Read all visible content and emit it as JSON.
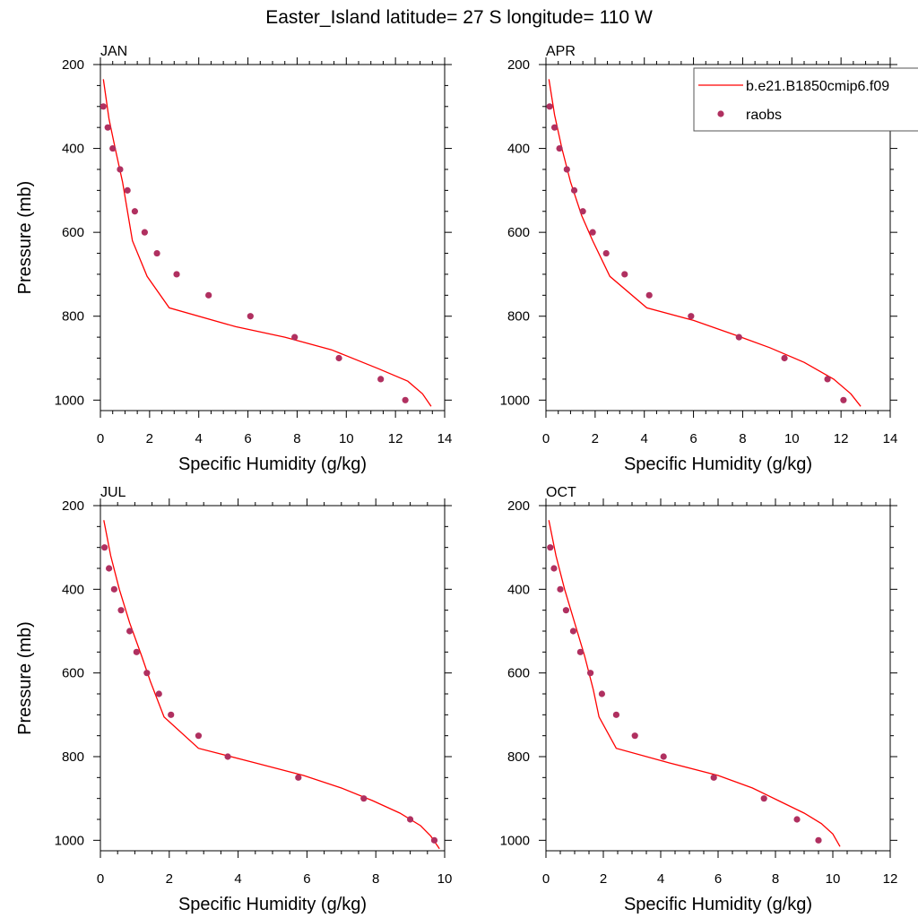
{
  "title": "Easter_Island  latitude= 27 S longitude= 110 W",
  "colors": {
    "model_line": "#ff0000",
    "raobs_marker": "#b03060",
    "axis": "#000000"
  },
  "legend": {
    "placement": "top-right",
    "entries": [
      {
        "label": "b.e21.B1850cmip6.f09",
        "symbol": "line"
      },
      {
        "label": "raobs",
        "symbol": "marker"
      }
    ]
  },
  "chart_data": [
    {
      "type": "line",
      "panel_title": "JAN",
      "xlabel": "Specific Humidity (g/kg)",
      "ylabel": "Pressure (mb)",
      "xlim": [
        0,
        14
      ],
      "ylim": [
        200,
        1025
      ],
      "y_inverted": true,
      "xticks": [
        0,
        2,
        4,
        6,
        8,
        10,
        12,
        14
      ],
      "yticks": [
        200,
        400,
        600,
        800,
        1000
      ],
      "series": [
        {
          "name": "b.e21.B1850cmip6.f09",
          "kind": "line",
          "x": [
            0.12,
            0.35,
            0.6,
            0.9,
            1.3,
            1.9,
            2.8,
            5.5,
            7.5,
            9.4,
            11.3,
            12.5,
            13.1,
            13.45
          ],
          "y": [
            235,
            330,
            400,
            480,
            620,
            705,
            780,
            825,
            850,
            880,
            925,
            955,
            985,
            1015
          ]
        },
        {
          "name": "raobs",
          "kind": "scatter",
          "x": [
            0.12,
            0.3,
            0.5,
            0.8,
            1.1,
            1.4,
            1.8,
            2.3,
            3.1,
            4.4,
            6.1,
            7.9,
            9.7,
            11.4,
            12.4
          ],
          "y": [
            300,
            350,
            400,
            450,
            500,
            550,
            600,
            650,
            700,
            750,
            800,
            850,
            900,
            950,
            1000
          ]
        }
      ]
    },
    {
      "type": "line",
      "panel_title": "APR",
      "xlabel": "Specific Humidity (g/kg)",
      "ylabel": "",
      "xlim": [
        0,
        14
      ],
      "ylim": [
        200,
        1025
      ],
      "y_inverted": true,
      "xticks": [
        0,
        2,
        4,
        6,
        8,
        10,
        12,
        14
      ],
      "yticks": [
        200,
        400,
        600,
        800,
        1000
      ],
      "series": [
        {
          "name": "b.e21.B1850cmip6.f09",
          "kind": "line",
          "x": [
            0.12,
            0.35,
            0.65,
            1.0,
            1.45,
            1.9,
            2.6,
            4.1,
            6.0,
            7.7,
            9.1,
            10.5,
            11.7,
            12.4,
            12.8
          ],
          "y": [
            235,
            320,
            400,
            480,
            560,
            620,
            705,
            780,
            810,
            845,
            875,
            910,
            950,
            985,
            1015
          ]
        },
        {
          "name": "raobs",
          "kind": "scatter",
          "x": [
            0.15,
            0.35,
            0.55,
            0.85,
            1.15,
            1.5,
            1.9,
            2.45,
            3.2,
            4.2,
            5.9,
            7.85,
            9.7,
            11.45,
            12.1
          ],
          "y": [
            300,
            350,
            400,
            450,
            500,
            550,
            600,
            650,
            700,
            750,
            800,
            850,
            900,
            950,
            1000
          ]
        }
      ]
    },
    {
      "type": "line",
      "panel_title": "JUL",
      "xlabel": "Specific Humidity (g/kg)",
      "ylabel": "Pressure (mb)",
      "xlim": [
        0,
        10
      ],
      "ylim": [
        200,
        1025
      ],
      "y_inverted": true,
      "xticks": [
        0,
        2,
        4,
        6,
        8,
        10
      ],
      "yticks": [
        200,
        400,
        600,
        800,
        1000
      ],
      "series": [
        {
          "name": "b.e21.B1850cmip6.f09",
          "kind": "line",
          "x": [
            0.1,
            0.3,
            0.55,
            0.85,
            1.2,
            1.45,
            1.85,
            2.85,
            4.5,
            5.9,
            7.0,
            7.9,
            8.7,
            9.3,
            9.6,
            9.85
          ],
          "y": [
            235,
            320,
            400,
            480,
            560,
            620,
            705,
            780,
            815,
            845,
            875,
            905,
            935,
            965,
            990,
            1020
          ]
        },
        {
          "name": "raobs",
          "kind": "scatter",
          "x": [
            0.12,
            0.25,
            0.4,
            0.6,
            0.85,
            1.05,
            1.35,
            1.7,
            2.05,
            2.85,
            3.7,
            5.75,
            7.65,
            9.0,
            9.7
          ],
          "y": [
            300,
            350,
            400,
            450,
            500,
            550,
            600,
            650,
            700,
            750,
            800,
            850,
            900,
            950,
            1000
          ]
        }
      ]
    },
    {
      "type": "line",
      "panel_title": "OCT",
      "xlabel": "Specific Humidity (g/kg)",
      "ylabel": "",
      "xlim": [
        0,
        12
      ],
      "ylim": [
        200,
        1025
      ],
      "y_inverted": true,
      "xticks": [
        0,
        2,
        4,
        6,
        8,
        10,
        12
      ],
      "yticks": [
        200,
        400,
        600,
        800,
        1000
      ],
      "series": [
        {
          "name": "b.e21.B1850cmip6.f09",
          "kind": "line",
          "x": [
            0.1,
            0.35,
            0.65,
            1.0,
            1.35,
            1.65,
            1.85,
            2.45,
            4.3,
            6.0,
            7.2,
            8.1,
            9.0,
            9.6,
            10.0,
            10.25
          ],
          "y": [
            235,
            320,
            400,
            480,
            560,
            640,
            705,
            780,
            815,
            845,
            875,
            905,
            935,
            960,
            985,
            1015
          ]
        },
        {
          "name": "raobs",
          "kind": "scatter",
          "x": [
            0.15,
            0.28,
            0.5,
            0.7,
            0.95,
            1.2,
            1.55,
            1.95,
            2.45,
            3.1,
            4.1,
            5.85,
            7.6,
            8.75,
            9.5
          ],
          "y": [
            300,
            350,
            400,
            450,
            500,
            550,
            600,
            650,
            700,
            750,
            800,
            850,
            900,
            950,
            1000
          ]
        }
      ]
    }
  ]
}
